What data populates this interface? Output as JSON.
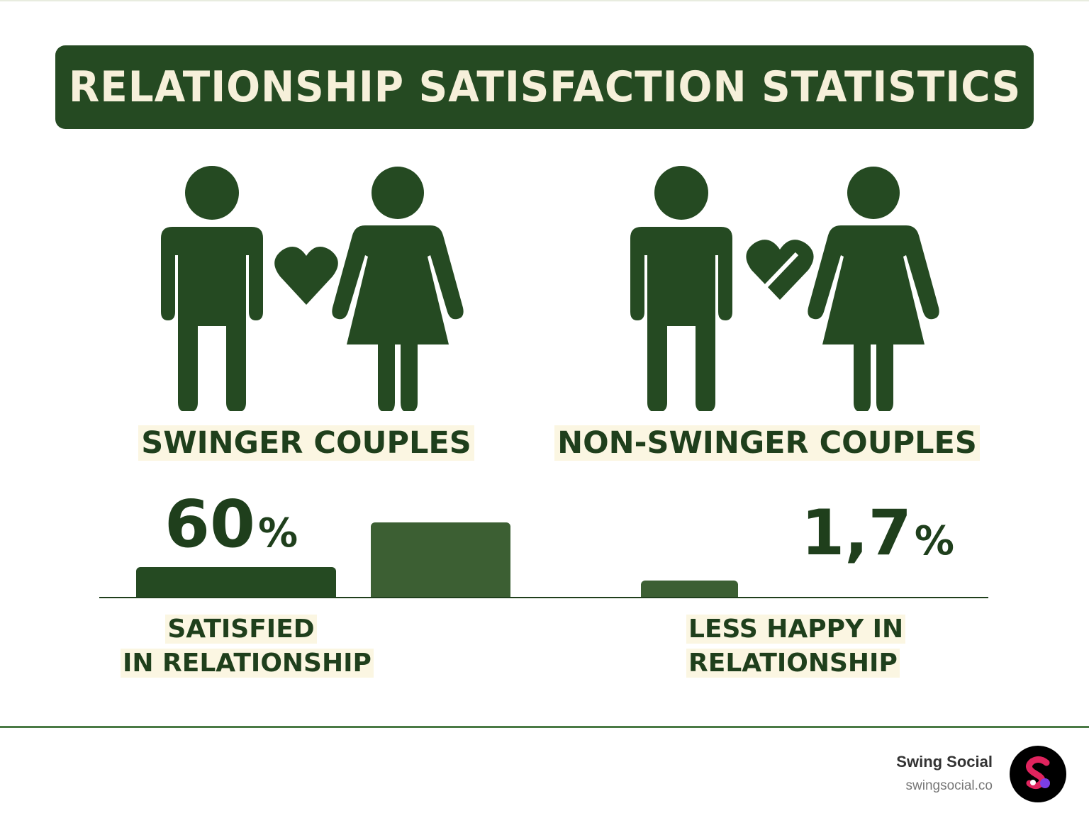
{
  "title": "RELATIONSHIP SATISFACTION STATISTICS",
  "groups": [
    {
      "label": "SWINGER COUPLES",
      "heart": "heart-icon"
    },
    {
      "label": "NON-SWINGER COUPLES",
      "heart": "broken-heart-icon"
    }
  ],
  "stats": [
    {
      "value": "60",
      "unit": "%",
      "caption_line1": "SATISFIED",
      "caption_line2": "IN RELATIONSHIP"
    },
    {
      "value": "1,7",
      "unit": "%",
      "caption_line1": "LESS HAPPY IN",
      "caption_line2": "RELATIONSHIP"
    }
  ],
  "bars": [
    {
      "group": "swinger",
      "relative_height": 0.4
    },
    {
      "group": "swinger",
      "relative_height": 1.0
    },
    {
      "group": "non-swinger",
      "relative_height": 0.22
    }
  ],
  "brand": {
    "name": "Swing Social",
    "url": "swingsocial.co"
  },
  "colors": {
    "primary": "#254a22",
    "bar_light": "#3c5f33",
    "cream": "#f6f0da",
    "logo_red": "#e0245e",
    "logo_purple": "#7b3fe4"
  }
}
